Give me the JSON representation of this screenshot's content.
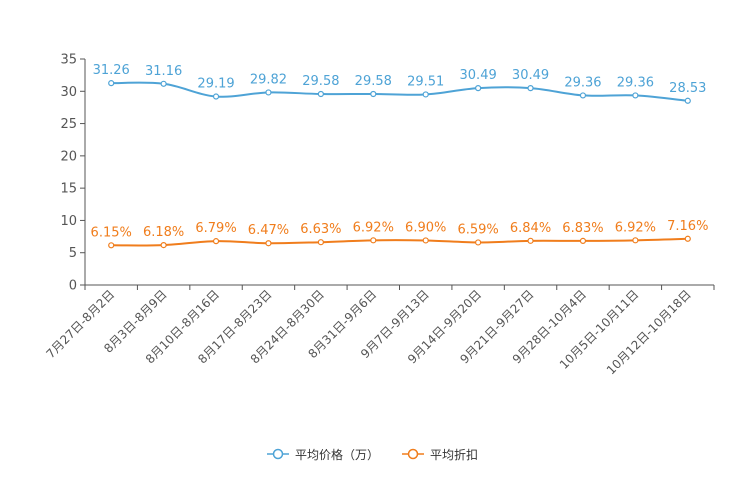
{
  "colors": {
    "series_a": "#4ea3d6",
    "series_b": "#f07d1c",
    "axis": "#555555",
    "text": "#333333"
  },
  "chart_data": {
    "type": "line",
    "categories": [
      "7月27日-8月2日",
      "8月3日-8月9日",
      "8月10日-8月16日",
      "8月17日-8月23日",
      "8月24日-8月30日",
      "8月31日-9月6日",
      "9月7日-9月13日",
      "9月14日-9月20日",
      "9月21日-9月27日",
      "9月28日-10月4日",
      "10月5日-10月11日",
      "10月12日-10月18日"
    ],
    "series": [
      {
        "name": "平均价格（万）",
        "values": [
          31.26,
          31.16,
          29.19,
          29.82,
          29.58,
          29.58,
          29.51,
          30.49,
          30.49,
          29.36,
          29.36,
          28.53
        ],
        "labels": [
          "31.26",
          "31.16",
          "29.19",
          "29.82",
          "29.58",
          "29.58",
          "29.51",
          "30.49",
          "30.49",
          "29.36",
          "29.36",
          "28.53"
        ]
      },
      {
        "name": "平均折扣",
        "values": [
          6.15,
          6.18,
          6.79,
          6.47,
          6.63,
          6.92,
          6.9,
          6.59,
          6.84,
          6.83,
          6.92,
          7.16
        ],
        "labels": [
          "6.15%",
          "6.18%",
          "6.79%",
          "6.47%",
          "6.63%",
          "6.92%",
          "6.90%",
          "6.59%",
          "6.84%",
          "6.83%",
          "6.92%",
          "7.16%"
        ]
      }
    ],
    "yticks": [
      0,
      5,
      10,
      15,
      20,
      25,
      30,
      35
    ],
    "ylim": [
      0,
      35
    ],
    "legend_position": "bottom-center"
  }
}
